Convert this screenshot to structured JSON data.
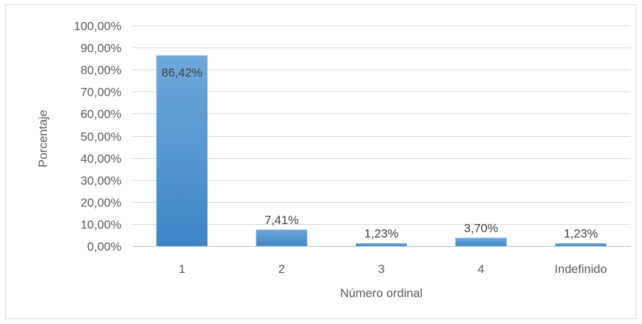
{
  "chart_data": {
    "type": "bar",
    "title": "",
    "xlabel": "Número ordinal",
    "ylabel": "Porcentaje",
    "categories": [
      "1",
      "2",
      "3",
      "4",
      "Indefinido"
    ],
    "values": [
      86.42,
      7.41,
      1.23,
      3.7,
      1.23
    ],
    "data_labels": [
      "86,42%",
      "7,41%",
      "1,23%",
      "3,70%",
      "1,23%"
    ],
    "ylim": [
      0,
      100
    ],
    "yticks": [
      0,
      10,
      20,
      30,
      40,
      50,
      60,
      70,
      80,
      90,
      100
    ],
    "ytick_labels": [
      "0,00%",
      "10,00%",
      "20,00%",
      "30,00%",
      "40,00%",
      "50,00%",
      "60,00%",
      "70,00%",
      "80,00%",
      "90,00%",
      "100,00%"
    ],
    "grid": true,
    "legend": "none",
    "colors": {
      "bar_top": "#6fa8dc",
      "bar_bottom": "#3d85c6",
      "grid": "#d9d9d9",
      "axis": "#bfbfbf"
    }
  }
}
